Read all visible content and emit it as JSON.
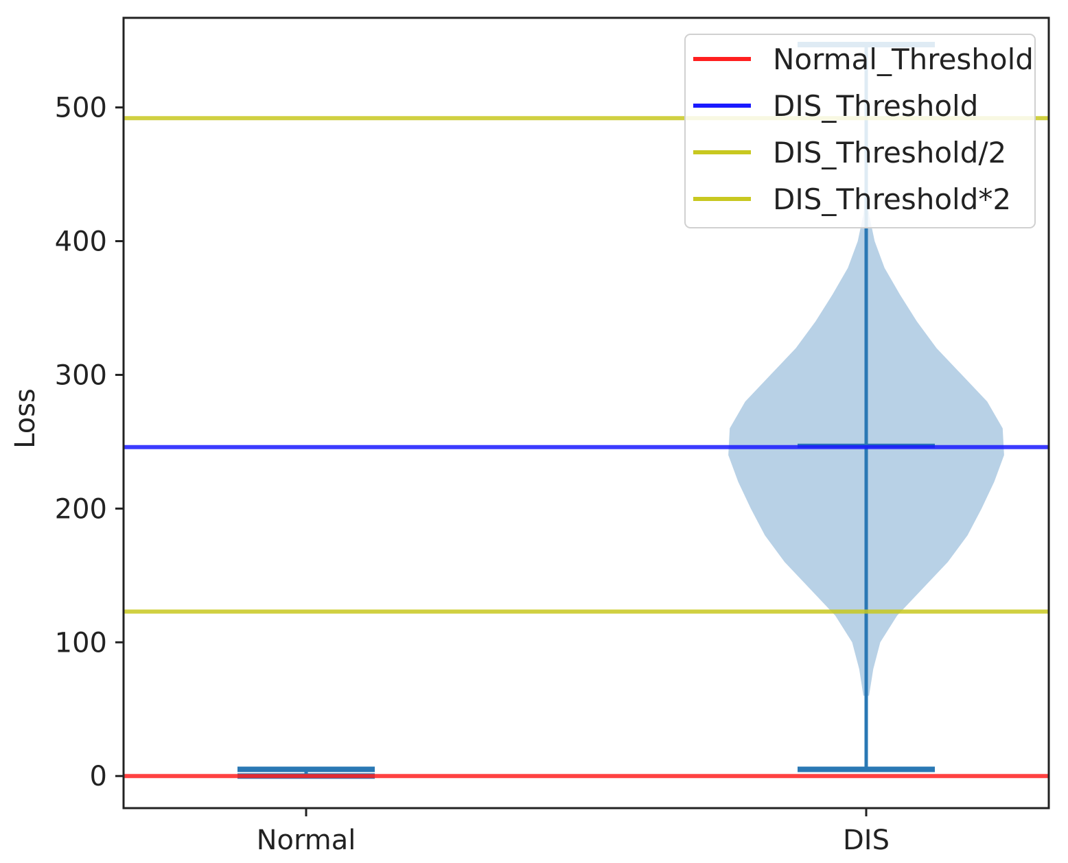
{
  "chart_data": {
    "type": "violin",
    "xlabel": "",
    "ylabel": "Loss",
    "ylim": [
      -24,
      567
    ],
    "yticks": [
      0,
      100,
      200,
      300,
      400,
      500
    ],
    "categories": [
      "Normal",
      "DIS"
    ],
    "violins": [
      {
        "category": "Normal",
        "min": 0,
        "max": 5,
        "median": 5,
        "density": []
      },
      {
        "category": "DIS",
        "min": 5,
        "max": 547,
        "median": 247,
        "density": [
          [
            60,
            0.02
          ],
          [
            80,
            0.05
          ],
          [
            100,
            0.1
          ],
          [
            120,
            0.22
          ],
          [
            140,
            0.4
          ],
          [
            160,
            0.58
          ],
          [
            180,
            0.72
          ],
          [
            200,
            0.82
          ],
          [
            220,
            0.91
          ],
          [
            240,
            0.98
          ],
          [
            260,
            0.97
          ],
          [
            280,
            0.86
          ],
          [
            300,
            0.68
          ],
          [
            320,
            0.5
          ],
          [
            340,
            0.36
          ],
          [
            360,
            0.24
          ],
          [
            380,
            0.13
          ],
          [
            400,
            0.06
          ],
          [
            420,
            0.02
          ],
          [
            440,
            0.0
          ]
        ]
      }
    ],
    "hlines": [
      {
        "name": "Normal_Threshold",
        "y": 0,
        "color": "#ff2020"
      },
      {
        "name": "DIS_Threshold",
        "y": 246,
        "color": "#1a1aff"
      },
      {
        "name": "DIS_Threshold/2",
        "y": 123,
        "color": "#c8c820"
      },
      {
        "name": "DIS_Threshold*2",
        "y": 492,
        "color": "#c8c820"
      }
    ],
    "violin_fill": "#b8d1e6",
    "violin_line": "#2a78b4",
    "grid": false,
    "legend_position": "top-right"
  }
}
